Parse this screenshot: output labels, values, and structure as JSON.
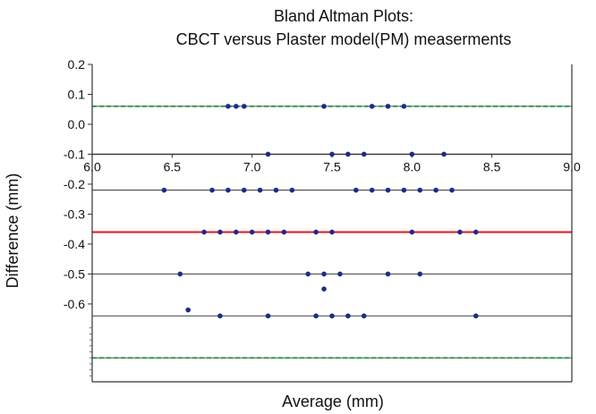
{
  "chart_data": {
    "type": "scatter",
    "title_lines": [
      "Bland Altman Plots:",
      "CBCT versus Plaster model(PM) measerments"
    ],
    "xlabel": "Average (mm)",
    "ylabel": "Difference (mm)",
    "x_ticks": [
      "6.0",
      "6.5",
      "7.0",
      "7.5",
      "8.0",
      "8.5",
      "9.0"
    ],
    "y_ticks": [
      "0.2",
      "0.1",
      "0.0",
      "-0.1",
      "-0.2",
      "-0.3",
      "-0.4",
      "-0.5",
      "-0.6"
    ],
    "x_range": [
      6.0,
      9.0
    ],
    "y_range": [
      -0.86,
      0.2
    ],
    "grid": "horizontal",
    "reference_lines": [
      {
        "y": 0.06,
        "color": "#2e9e4f",
        "style": "dashed"
      },
      {
        "y": -0.36,
        "color": "#e0202a",
        "style": "solid"
      },
      {
        "y": -0.78,
        "color": "#2e9e4f",
        "style": "dashed"
      }
    ],
    "point_color": "#1f2a8c",
    "points": [
      {
        "x": 6.85,
        "y": 0.06
      },
      {
        "x": 6.9,
        "y": 0.06
      },
      {
        "x": 6.95,
        "y": 0.06
      },
      {
        "x": 7.45,
        "y": 0.06
      },
      {
        "x": 7.75,
        "y": 0.06
      },
      {
        "x": 7.85,
        "y": 0.06
      },
      {
        "x": 7.95,
        "y": 0.06
      },
      {
        "x": 7.1,
        "y": -0.1
      },
      {
        "x": 7.5,
        "y": -0.1
      },
      {
        "x": 7.6,
        "y": -0.1
      },
      {
        "x": 7.7,
        "y": -0.1
      },
      {
        "x": 8.0,
        "y": -0.1
      },
      {
        "x": 8.2,
        "y": -0.1
      },
      {
        "x": 6.45,
        "y": -0.22
      },
      {
        "x": 6.75,
        "y": -0.22
      },
      {
        "x": 6.85,
        "y": -0.22
      },
      {
        "x": 6.95,
        "y": -0.22
      },
      {
        "x": 7.05,
        "y": -0.22
      },
      {
        "x": 7.15,
        "y": -0.22
      },
      {
        "x": 7.25,
        "y": -0.22
      },
      {
        "x": 7.65,
        "y": -0.22
      },
      {
        "x": 7.75,
        "y": -0.22
      },
      {
        "x": 7.85,
        "y": -0.22
      },
      {
        "x": 7.95,
        "y": -0.22
      },
      {
        "x": 8.05,
        "y": -0.22
      },
      {
        "x": 8.15,
        "y": -0.22
      },
      {
        "x": 8.25,
        "y": -0.22
      },
      {
        "x": 6.7,
        "y": -0.36
      },
      {
        "x": 6.8,
        "y": -0.36
      },
      {
        "x": 6.9,
        "y": -0.36
      },
      {
        "x": 7.0,
        "y": -0.36
      },
      {
        "x": 7.1,
        "y": -0.36
      },
      {
        "x": 7.2,
        "y": -0.36
      },
      {
        "x": 7.4,
        "y": -0.36
      },
      {
        "x": 7.5,
        "y": -0.36
      },
      {
        "x": 8.0,
        "y": -0.36
      },
      {
        "x": 8.3,
        "y": -0.36
      },
      {
        "x": 8.4,
        "y": -0.36
      },
      {
        "x": 6.55,
        "y": -0.5
      },
      {
        "x": 7.35,
        "y": -0.5
      },
      {
        "x": 7.45,
        "y": -0.5
      },
      {
        "x": 7.55,
        "y": -0.5
      },
      {
        "x": 7.85,
        "y": -0.5
      },
      {
        "x": 8.05,
        "y": -0.5
      },
      {
        "x": 7.45,
        "y": -0.55
      },
      {
        "x": 6.6,
        "y": -0.62
      },
      {
        "x": 6.8,
        "y": -0.64
      },
      {
        "x": 7.1,
        "y": -0.64
      },
      {
        "x": 7.4,
        "y": -0.64
      },
      {
        "x": 7.5,
        "y": -0.64
      },
      {
        "x": 7.6,
        "y": -0.64
      },
      {
        "x": 7.7,
        "y": -0.64
      },
      {
        "x": 8.4,
        "y": -0.64
      }
    ]
  }
}
